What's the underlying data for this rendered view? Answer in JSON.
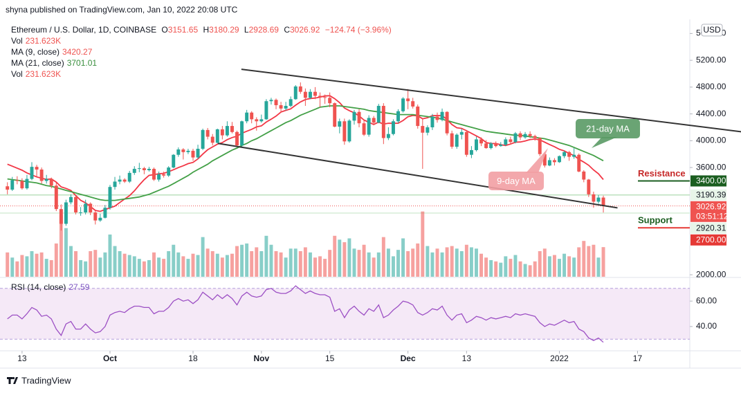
{
  "chart_data": {
    "type": "candlestick",
    "header": "shyna published on TradingView.com, Jan 10, 2022 20:08 UTC",
    "title": "Ethereum / U.S. Dollar, 1D, COINBASE",
    "ohlc_letters": [
      "O",
      "H",
      "L",
      "C"
    ],
    "change_text": "−124.74 (−3.96%)",
    "currency": "USD",
    "brand": "TradingView",
    "up_color": "#26a69a",
    "down_color": "#ef5350",
    "grid": false,
    "open": [
      3320,
      3270,
      3410,
      3400,
      3290,
      3430,
      3610,
      3570,
      3400,
      3430,
      3330,
      2980,
      2760,
      3080,
      3160,
      2930,
      2930,
      3060,
      2930,
      2810,
      2850,
      3000,
      3310,
      3390,
      3420,
      3390,
      3520,
      3580,
      3590,
      3560,
      3580,
      3420,
      3500,
      3480,
      3600,
      3790,
      3870,
      3830,
      3850,
      3750,
      3880,
      4160,
      4060,
      3970,
      4170,
      4080,
      4220,
      4130,
      3930,
      4290,
      4420,
      4320,
      4290,
      4320,
      4590,
      4610,
      4530,
      4480,
      4520,
      4620,
      4810,
      4730,
      4640,
      4730,
      4670,
      4650,
      4640,
      4560,
      4210,
      4290,
      3990,
      4300,
      4430,
      4260,
      4090,
      4340,
      4270,
      4520,
      4040,
      4100,
      4290,
      4440,
      4630,
      4590,
      4510,
      4220,
      4120,
      4200,
      4360,
      4310,
      4430,
      4110,
      3910,
      4090,
      4130,
      3790,
      3860,
      4020,
      3960,
      3890,
      3960,
      3920,
      3940,
      4020,
      3980,
      4110,
      4050,
      4100,
      4070,
      4040,
      3800,
      3630,
      3710,
      3680,
      3770,
      3830,
      3760,
      3790,
      3540,
      3420,
      3200,
      3090,
      3151.65
    ],
    "high": [
      3380,
      3460,
      3470,
      3440,
      3490,
      3680,
      3640,
      3600,
      3490,
      3450,
      3370,
      3050,
      3120,
      3200,
      3170,
      3010,
      3120,
      3080,
      2950,
      2910,
      3040,
      3340,
      3460,
      3480,
      3440,
      3550,
      3620,
      3670,
      3610,
      3610,
      3600,
      3540,
      3540,
      3620,
      3800,
      3900,
      3890,
      3880,
      3880,
      3940,
      4180,
      4190,
      4100,
      4180,
      4220,
      4290,
      4280,
      4150,
      4300,
      4460,
      4440,
      4350,
      4390,
      4620,
      4640,
      4630,
      4580,
      4580,
      4660,
      4830,
      4870,
      4780,
      4770,
      4800,
      4720,
      4690,
      4720,
      4570,
      4330,
      4330,
      4320,
      4460,
      4470,
      4320,
      4380,
      4370,
      4550,
      4560,
      4200,
      4320,
      4470,
      4650,
      4770,
      4640,
      4540,
      4330,
      4230,
      4400,
      4420,
      4480,
      4440,
      4150,
      4110,
      4180,
      4160,
      3920,
      4060,
      4050,
      4010,
      3980,
      3990,
      3980,
      4050,
      4060,
      4130,
      4140,
      4130,
      4140,
      4090,
      4050,
      3830,
      3750,
      3740,
      3780,
      3850,
      3850,
      3890,
      3810,
      3560,
      3430,
      3240,
      3190,
      3180.29
    ],
    "low": [
      3200,
      3250,
      3350,
      3270,
      3270,
      3410,
      3470,
      3360,
      3360,
      3290,
      2950,
      2660,
      2730,
      3050,
      2900,
      2880,
      2900,
      2890,
      2750,
      2790,
      2840,
      2970,
      3270,
      3350,
      3370,
      3370,
      3490,
      3530,
      3500,
      3540,
      3400,
      3390,
      3450,
      3460,
      3590,
      3760,
      3720,
      3800,
      3700,
      3730,
      3860,
      4020,
      3930,
      3960,
      4020,
      4060,
      4110,
      3910,
      3900,
      4260,
      4260,
      4150,
      4270,
      4310,
      4540,
      4470,
      4420,
      4450,
      4500,
      4610,
      4700,
      4520,
      4620,
      4620,
      4500,
      4550,
      4500,
      4200,
      4110,
      3940,
      3970,
      4240,
      4200,
      4070,
      4060,
      4230,
      4260,
      3950,
      4010,
      4080,
      4260,
      4420,
      4470,
      4480,
      4180,
      3580,
      4080,
      4160,
      4270,
      4290,
      4080,
      3880,
      3880,
      4020,
      3760,
      3740,
      3840,
      3920,
      3880,
      3870,
      3900,
      3910,
      3920,
      3940,
      3960,
      4010,
      4030,
      4040,
      4000,
      3770,
      3600,
      3620,
      3630,
      3670,
      3740,
      3700,
      3730,
      3530,
      3380,
      3160,
      3000,
      3060,
      2928.69
    ],
    "close": [
      3270,
      3410,
      3400,
      3290,
      3430,
      3610,
      3570,
      3400,
      3430,
      3330,
      2980,
      2760,
      3080,
      3160,
      2930,
      2930,
      3060,
      2930,
      2810,
      2850,
      3000,
      3310,
      3390,
      3420,
      3390,
      3520,
      3580,
      3590,
      3560,
      3580,
      3420,
      3500,
      3480,
      3600,
      3790,
      3870,
      3830,
      3850,
      3750,
      3880,
      4160,
      4060,
      3970,
      4170,
      4080,
      4220,
      4130,
      3930,
      4290,
      4420,
      4320,
      4290,
      4320,
      4590,
      4610,
      4530,
      4480,
      4520,
      4620,
      4810,
      4730,
      4640,
      4730,
      4670,
      4650,
      4640,
      4560,
      4210,
      4290,
      3990,
      4300,
      4430,
      4260,
      4090,
      4340,
      4270,
      4520,
      4040,
      4100,
      4290,
      4440,
      4630,
      4590,
      4510,
      4220,
      4120,
      4200,
      4360,
      4310,
      4430,
      4110,
      3910,
      4090,
      4130,
      3790,
      3860,
      4020,
      3960,
      3890,
      3960,
      3920,
      3940,
      4020,
      3980,
      4110,
      4050,
      4100,
      4070,
      4040,
      3800,
      3630,
      3710,
      3680,
      3770,
      3830,
      3760,
      3790,
      3540,
      3420,
      3200,
      3090,
      3151.65,
      3026.92
    ],
    "volume": {
      "name": "Vol",
      "label": "231.623K",
      "lim": [
        0,
        2000
      ],
      "values": [
        190,
        150,
        120,
        170,
        160,
        200,
        180,
        190,
        140,
        130,
        260,
        480,
        380,
        240,
        200,
        130,
        120,
        200,
        210,
        150,
        190,
        330,
        240,
        200,
        180,
        170,
        160,
        140,
        120,
        130,
        190,
        150,
        140,
        200,
        250,
        190,
        160,
        140,
        180,
        170,
        310,
        220,
        200,
        180,
        150,
        170,
        180,
        240,
        250,
        260,
        200,
        230,
        200,
        320,
        250,
        200,
        190,
        150,
        220,
        220,
        200,
        230,
        190,
        150,
        160,
        140,
        210,
        320,
        290,
        270,
        300,
        220,
        210,
        250,
        190,
        150,
        190,
        310,
        220,
        160,
        210,
        300,
        200,
        220,
        260,
        510,
        240,
        190,
        220,
        190,
        230,
        240,
        220,
        200,
        250,
        230,
        220,
        180,
        150,
        130,
        120,
        110,
        160,
        140,
        170,
        120,
        100,
        90,
        120,
        200,
        220,
        160,
        170,
        140,
        180,
        160,
        150,
        230,
        280,
        240,
        250,
        150,
        231.623
      ]
    },
    "series": [
      {
        "name": "MA (9, close)",
        "color": "#f23645",
        "values": [
          3650,
          3620,
          3590,
          3560,
          3520,
          3490,
          3460,
          3440,
          3423,
          3430,
          3382,
          3311,
          3288,
          3258,
          3182,
          3111,
          3073,
          3018,
          2960,
          2946,
          2972,
          2998,
          3023,
          3078,
          3129,
          3180,
          3252,
          3339,
          3418,
          3482,
          3494,
          3507,
          3513,
          3537,
          3567,
          3599,
          3626,
          3658,
          3677,
          3728,
          3801,
          3866,
          3907,
          3949,
          3972,
          4016,
          4047,
          4067,
          4112,
          4141,
          4170,
          4206,
          4222,
          4279,
          4322,
          4367,
          4428,
          4453,
          4476,
          4530,
          4579,
          4614,
          4630,
          4637,
          4650,
          4668,
          4672,
          4627,
          4569,
          4487,
          4449,
          4416,
          4370,
          4308,
          4274,
          4242,
          4277,
          4249,
          4261,
          4260,
          4261,
          4302,
          4358,
          4377,
          4371,
          4327,
          4344,
          4373,
          4376,
          4374,
          4317,
          4241,
          4194,
          4184,
          4148,
          4110,
          4072,
          4033,
          3973,
          3957,
          3958,
          3941,
          3929,
          3950,
          3978,
          3981,
          3997,
          4017,
          4026,
          4012,
          3978,
          3943,
          3910,
          3872,
          3848,
          3810,
          3779,
          3723,
          3681,
          3633,
          3564,
          3506,
          3420.27
        ]
      },
      {
        "name": "MA (21, close)",
        "color": "#43a047",
        "values": [
          3430,
          3420,
          3410,
          3400,
          3390,
          3380,
          3370,
          3350,
          3330,
          3320,
          3300,
          3280,
          3260,
          3240,
          3220,
          3200,
          3180,
          3160,
          3140,
          3120,
          3110,
          3110,
          3110,
          3120,
          3130,
          3140,
          3150,
          3160,
          3180,
          3200,
          3230,
          3260,
          3290,
          3320,
          3360,
          3400,
          3440,
          3480,
          3530,
          3570,
          3610,
          3650,
          3700,
          3740,
          3780,
          3820,
          3860,
          3890,
          3930,
          3960,
          4000,
          4030,
          4070,
          4110,
          4150,
          4190,
          4230,
          4270,
          4300,
          4340,
          4380,
          4410,
          4440,
          4470,
          4500,
          4510,
          4520,
          4520,
          4520,
          4510,
          4500,
          4490,
          4480,
          4470,
          4450,
          4440,
          4430,
          4420,
          4410,
          4400,
          4390,
          4390,
          4390,
          4390,
          4380,
          4370,
          4360,
          4350,
          4340,
          4320,
          4300,
          4280,
          4260,
          4240,
          4220,
          4200,
          4180,
          4160,
          4140,
          4130,
          4120,
          4110,
          4100,
          4090,
          4080,
          4080,
          4070,
          4060,
          4050,
          4040,
          4030,
          4010,
          3990,
          3970,
          3950,
          3930,
          3900,
          3870,
          3840,
          3810,
          3780,
          3740,
          3701.01
        ]
      }
    ],
    "rsi": {
      "name": "RSI (14, close)",
      "color": "#9c4fc4",
      "ylim": [
        22,
        77.5
      ],
      "bands": [
        30,
        70
      ],
      "yticks": [
        {
          "value": 40,
          "label": "40.00"
        },
        {
          "value": 60,
          "label": "60.00"
        }
      ],
      "values": [
        46,
        49,
        49,
        46,
        50,
        55,
        53,
        48,
        49,
        46,
        38,
        33,
        42,
        44,
        38,
        38,
        42,
        38,
        35,
        36,
        40,
        49,
        51,
        52,
        51,
        54,
        56,
        56,
        55,
        55,
        50,
        52,
        52,
        55,
        60,
        62,
        60,
        61,
        58,
        61,
        67,
        64,
        61,
        65,
        62,
        65,
        62,
        57,
        64,
        67,
        64,
        63,
        64,
        69,
        70,
        67,
        66,
        66,
        68,
        72,
        69,
        66,
        68,
        66,
        65,
        65,
        63,
        52,
        54,
        47,
        53,
        56,
        52,
        49,
        54,
        52,
        57,
        47,
        49,
        53,
        56,
        60,
        59,
        57,
        51,
        49,
        51,
        54,
        53,
        56,
        49,
        45,
        49,
        50,
        43,
        45,
        48,
        47,
        45,
        47,
        46,
        47,
        48,
        47,
        50,
        49,
        50,
        49,
        48,
        43,
        40,
        42,
        41,
        43,
        45,
        43,
        44,
        38,
        36,
        31,
        29,
        31,
        27.59
      ]
    },
    "xlim": [
      -0.1,
      139.7
    ],
    "xticks": [
      {
        "value": 3,
        "label": "13"
      },
      {
        "value": 21,
        "label": "Oct"
      },
      {
        "value": 38,
        "label": "18"
      },
      {
        "value": 52,
        "label": "Nov"
      },
      {
        "value": 66,
        "label": "15"
      },
      {
        "value": 82,
        "label": "Dec"
      },
      {
        "value": 94,
        "label": "13"
      },
      {
        "value": 113,
        "label": "2022"
      },
      {
        "value": 129,
        "label": "17"
      }
    ],
    "ylim": [
      1970,
      5790
    ],
    "yticks": [
      {
        "value": 2000,
        "label": "2000.00"
      },
      {
        "value": 3600,
        "label": "3600.00"
      },
      {
        "value": 4000,
        "label": "4000.00"
      },
      {
        "value": 4400,
        "label": "4400.00"
      },
      {
        "value": 4800,
        "label": "4800.00"
      },
      {
        "value": 5200,
        "label": "5200.00"
      },
      {
        "value": 5600,
        "label": "5600.00"
      }
    ],
    "levels": [
      {
        "name": "Resistance",
        "value": 3400,
        "label": "3400.00",
        "color": "#1b5e20",
        "text_color": "#c62828"
      },
      {
        "name": "Support",
        "value": 2700,
        "label": "2700.00",
        "color": "#e53935",
        "text_color": "#1b5e20"
      }
    ],
    "price_lines": [
      {
        "value": 3190.39,
        "color": "#a5d6a7"
      },
      {
        "value": 2920.31,
        "color": "#c8e6c9"
      }
    ],
    "countdown": "03:51:12",
    "trendlines": [
      {
        "x": [
          47.9,
          155.7
        ],
        "y": [
          5066,
          4084
        ],
        "color": "#333333"
      },
      {
        "x": [
          43.1,
          124.9
        ],
        "y": [
          3960,
          2998
        ],
        "color": "#333333"
      }
    ],
    "annotations": [
      {
        "text": "21-day MA",
        "color": "#5a9a65"
      },
      {
        "text": "9-day MA",
        "color": "#f29ea3"
      }
    ]
  }
}
